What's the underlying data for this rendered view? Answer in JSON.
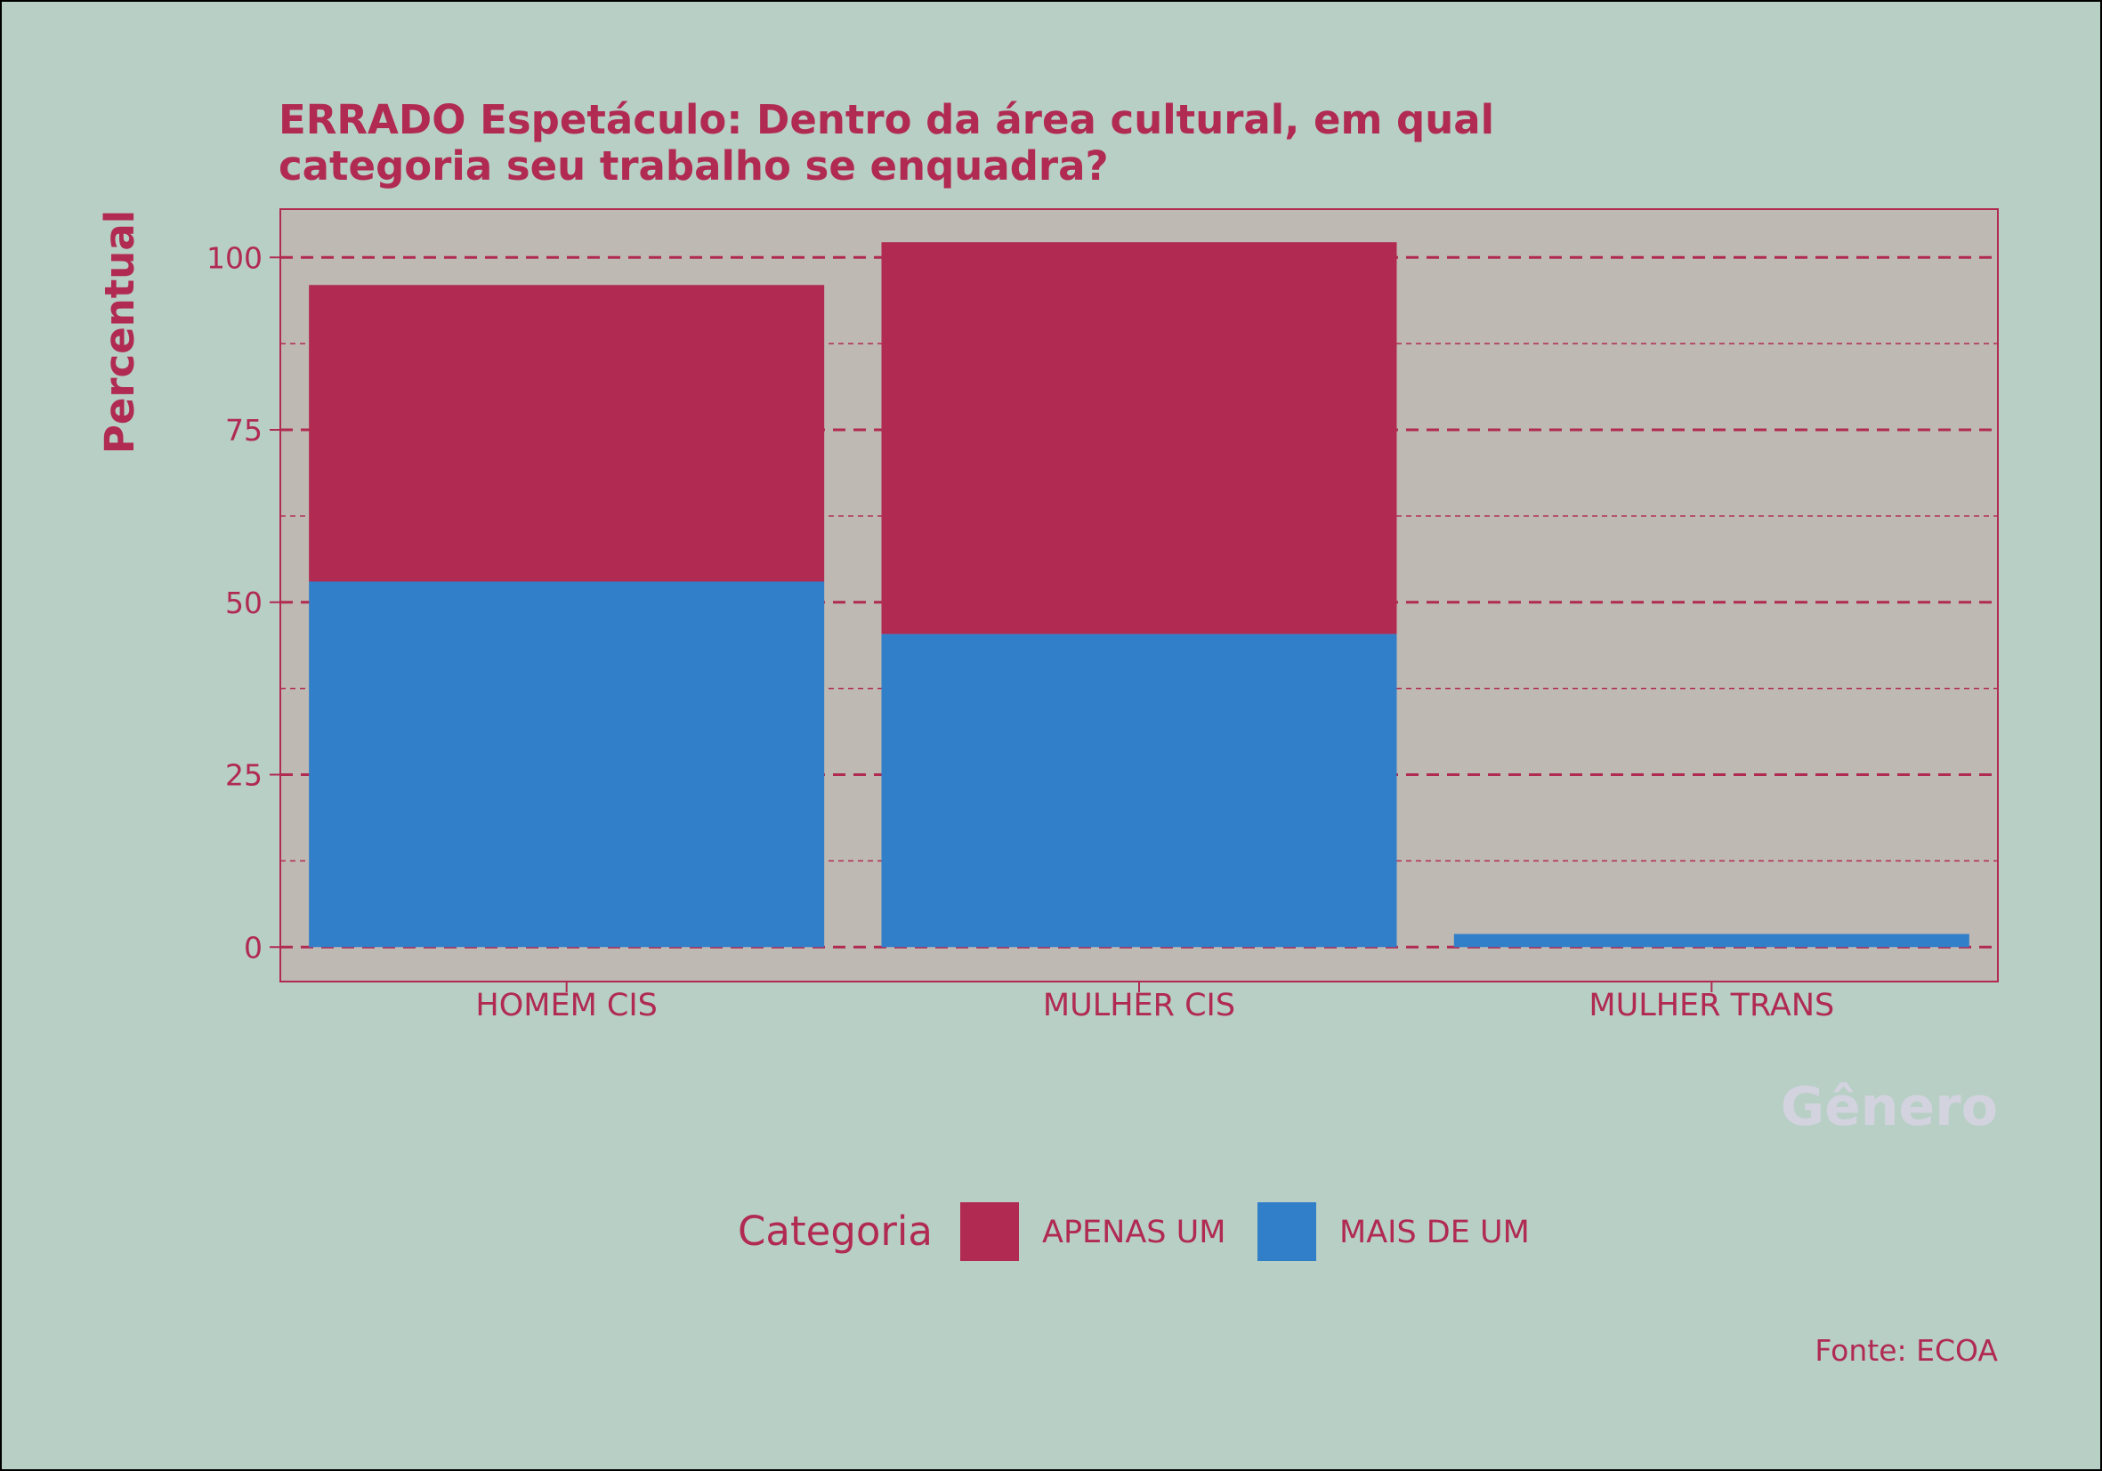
{
  "chart_data": {
    "type": "bar",
    "stacked": true,
    "title_lines": [
      "ERRADO Espetáculo: Dentro da área cultural, em qual",
      "categoria seu trabalho se enquadra?"
    ],
    "xlabel": "Gênero",
    "ylabel": "Percentual",
    "categories": [
      "HOMEM CIS",
      "MULHER CIS",
      "MULHER TRANS"
    ],
    "series": [
      {
        "name": "MAIS DE UM",
        "color": "#317fc9",
        "values": [
          53,
          45.4,
          1.9
        ]
      },
      {
        "name": "APENAS UM",
        "color": "#b02a52",
        "values": [
          43,
          56.8,
          0
        ]
      }
    ],
    "yticks": [
      0,
      25,
      50,
      75,
      100
    ],
    "ylim": [
      -5,
      107
    ],
    "grid": true,
    "legend": {
      "title": "Categoria",
      "position": "bottom",
      "order": [
        "APENAS UM",
        "MAIS DE UM"
      ]
    },
    "caption": "Fonte: ECOA",
    "colors": {
      "background": "#b8cfc5",
      "panel": "#bfb9b3",
      "accent": "#b02a52",
      "xlabel": "#d3d3df"
    }
  }
}
